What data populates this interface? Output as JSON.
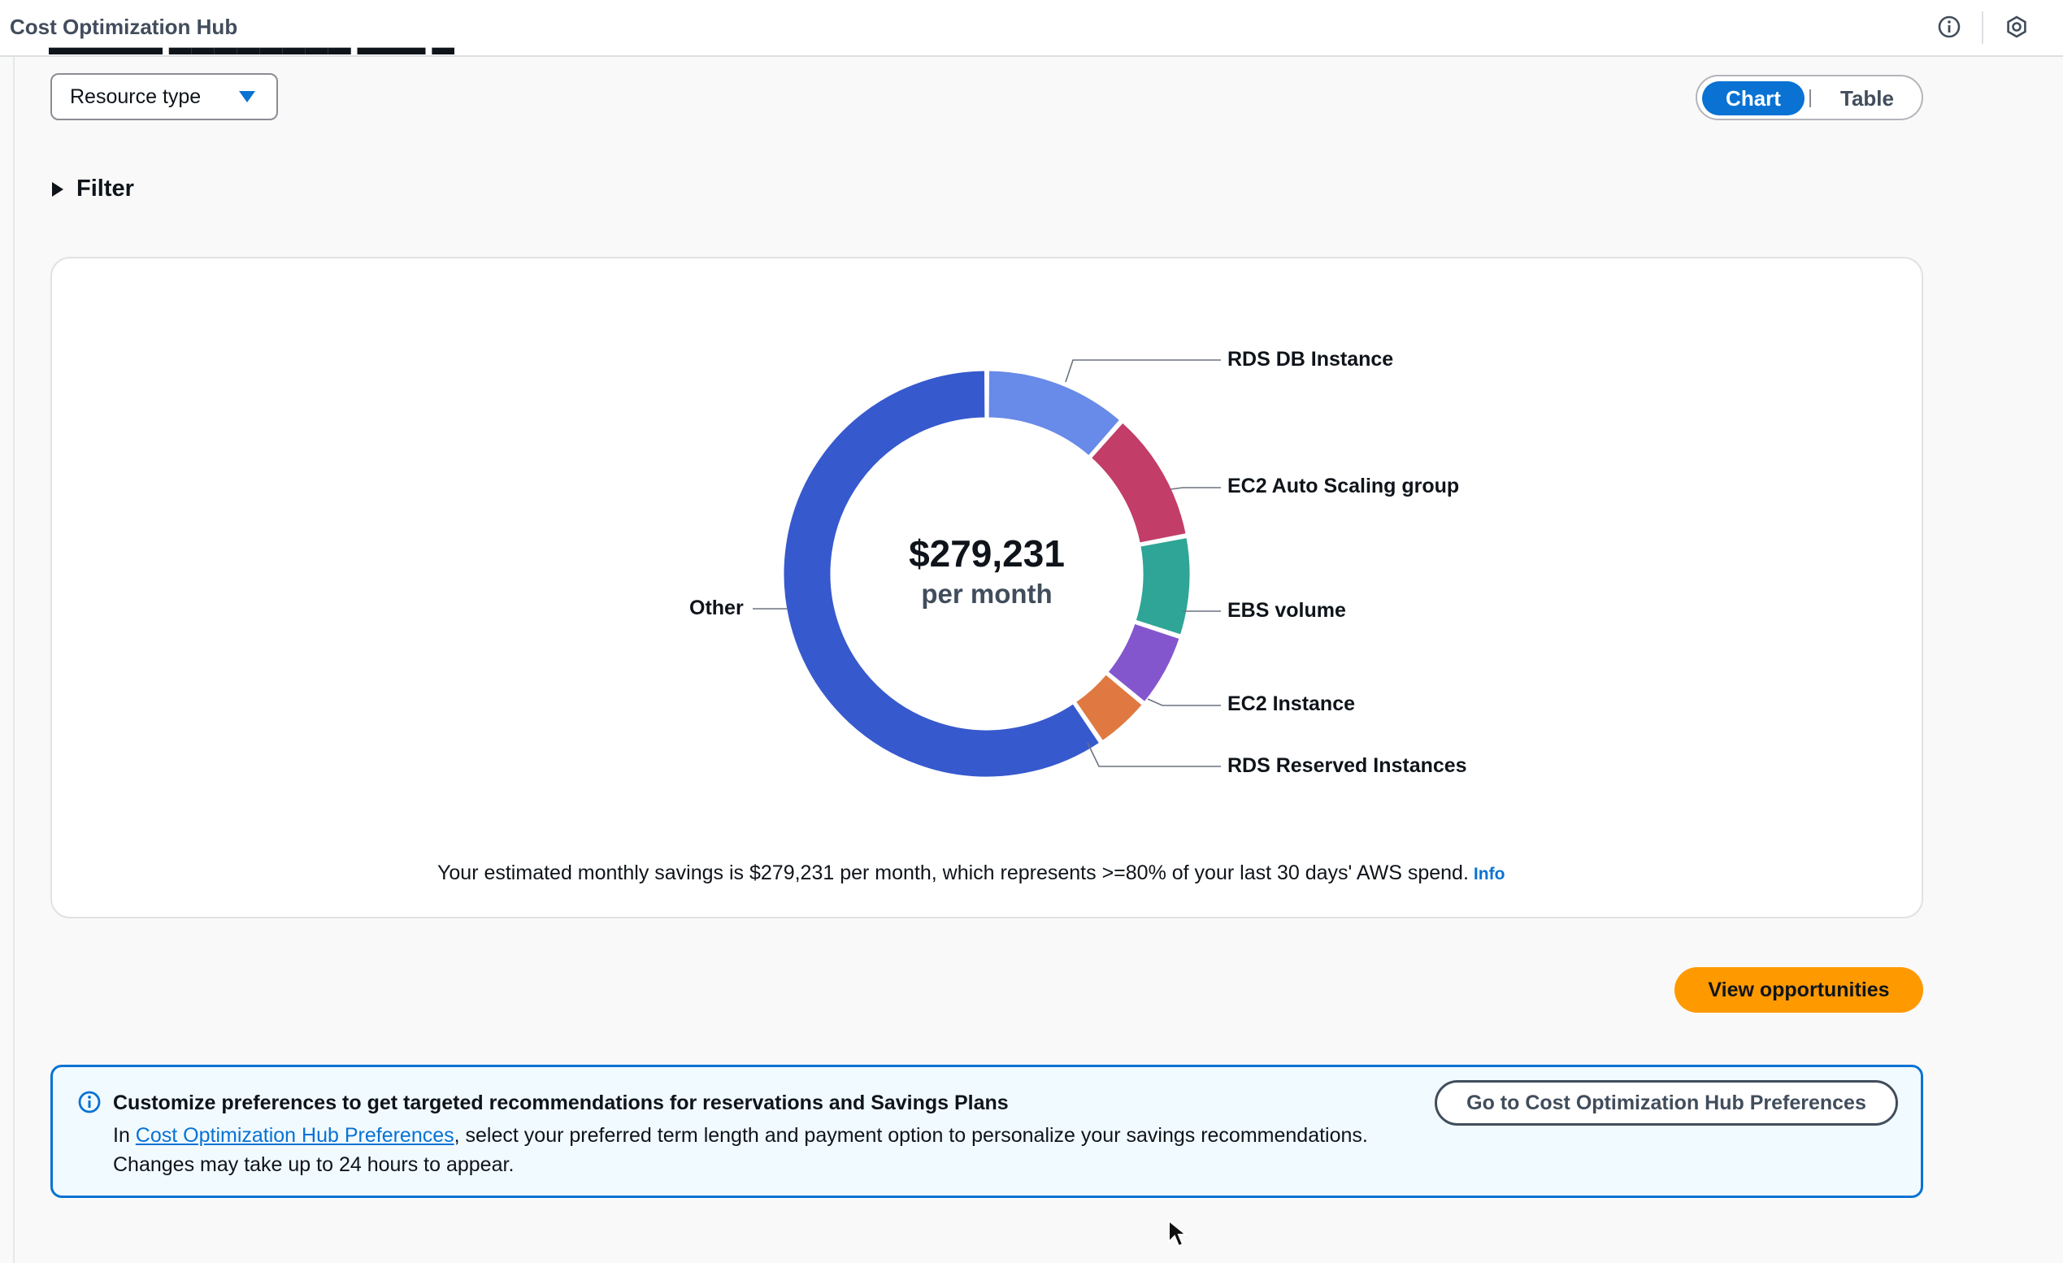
{
  "header": {
    "title": "Cost Optimization Hub",
    "icons": [
      "info-icon",
      "settings-icon"
    ]
  },
  "toolbar": {
    "group_by_value": "Resource type",
    "view_toggle": {
      "chart_label": "Chart",
      "table_label": "Table",
      "selected": "Chart"
    }
  },
  "filter": {
    "label": "Filter"
  },
  "chart": {
    "center_amount": "$279,231",
    "center_sub": "per month",
    "labels": {
      "rds_db": "RDS DB Instance",
      "ec2_asg": "EC2 Auto Scaling group",
      "ebs": "EBS volume",
      "ec2": "EC2 Instance",
      "rds_ri": "RDS Reserved Instances",
      "other": "Other"
    }
  },
  "chart_data": {
    "type": "pie",
    "categories": [
      "RDS DB Instance",
      "EC2 Auto Scaling group",
      "EBS volume",
      "EC2 Instance",
      "RDS Reserved Instances",
      "Other"
    ],
    "values": [
      0.115,
      0.105,
      0.08,
      0.06,
      0.045,
      0.595
    ],
    "colors": [
      "#688ae8",
      "#c33d69",
      "#2ea597",
      "#8456ce",
      "#e07941",
      "#3759ce"
    ],
    "total": "$279,231",
    "legend": "labels outside with leader lines"
  },
  "savings": {
    "text": "Your estimated monthly savings is $279,231 per month, which represents >=80% of your last 30 days' AWS spend.",
    "info_link": "Info"
  },
  "actions": {
    "view_opportunities": "View opportunities"
  },
  "alert": {
    "title": "Customize preferences to get targeted recommendations for reservations and Savings Plans",
    "body_prefix": "In ",
    "body_link": "Cost Optimization Hub Preferences",
    "body_suffix": ", select your preferred term length and payment option to personalize your savings recommendations.",
    "body_line2": "Changes may take up to 24 hours to appear.",
    "button_label": "Go to Cost Optimization Hub Preferences"
  }
}
